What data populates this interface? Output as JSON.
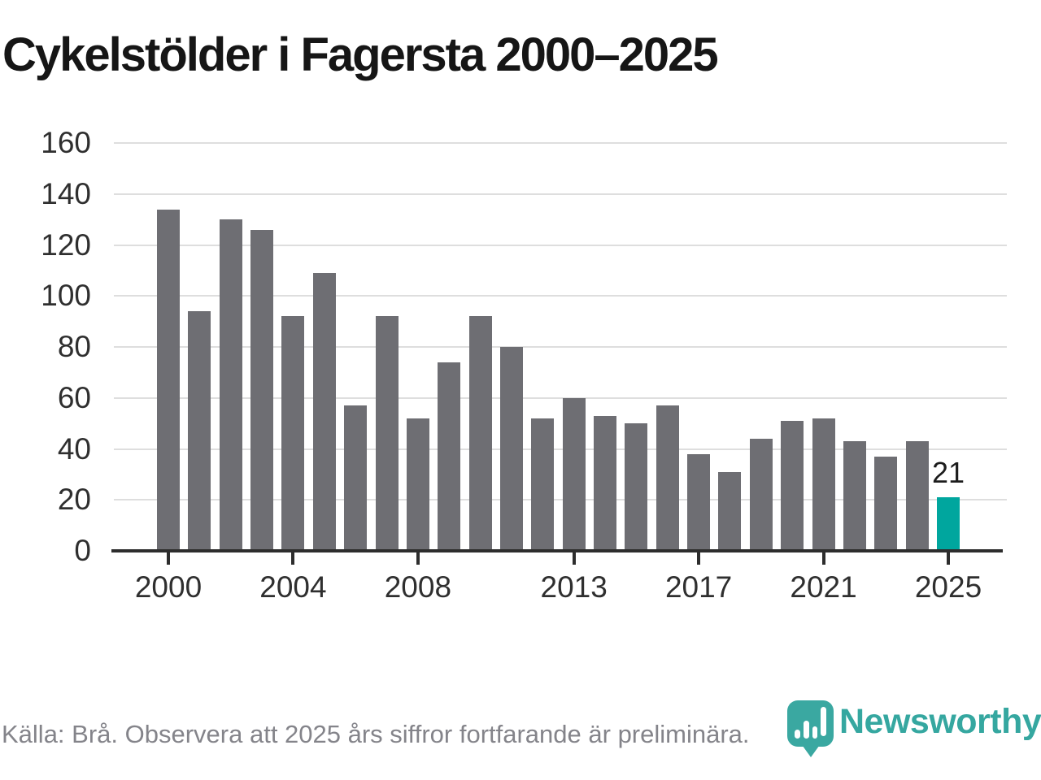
{
  "title": "Cykelstölder i Fagersta 2000–2025",
  "chart_data": {
    "type": "bar",
    "categories": [
      2000,
      2001,
      2002,
      2003,
      2004,
      2005,
      2006,
      2007,
      2008,
      2009,
      2010,
      2011,
      2012,
      2013,
      2014,
      2015,
      2016,
      2017,
      2018,
      2019,
      2020,
      2021,
      2022,
      2023,
      2024,
      2025
    ],
    "values": [
      134,
      94,
      130,
      126,
      92,
      109,
      57,
      92,
      52,
      74,
      92,
      80,
      52,
      60,
      53,
      50,
      57,
      38,
      31,
      44,
      51,
      52,
      43,
      37,
      43,
      21
    ],
    "title": "Cykelstölder i Fagersta 2000–2025",
    "xlabel": "",
    "ylabel": "",
    "ylim": [
      0,
      160
    ],
    "yticks": [
      0,
      20,
      40,
      60,
      80,
      100,
      120,
      140,
      160
    ],
    "xticks_shown": [
      2000,
      2004,
      2008,
      2013,
      2017,
      2021,
      2025
    ],
    "grid": "horizontal",
    "legend": "none",
    "bar_color": "#6e6e73",
    "highlight_category": 2025,
    "highlight_color": "#00a69e",
    "highlight_value_label": "21"
  },
  "footer": {
    "source_text": "Källa: Brå. Observera att 2025 års siffror fortfarande är preliminära."
  },
  "branding": {
    "logo_text": "Newsworthy",
    "logo_color": "#35a7a0",
    "logo_icon": "map-pin-bar-chart-icon"
  }
}
